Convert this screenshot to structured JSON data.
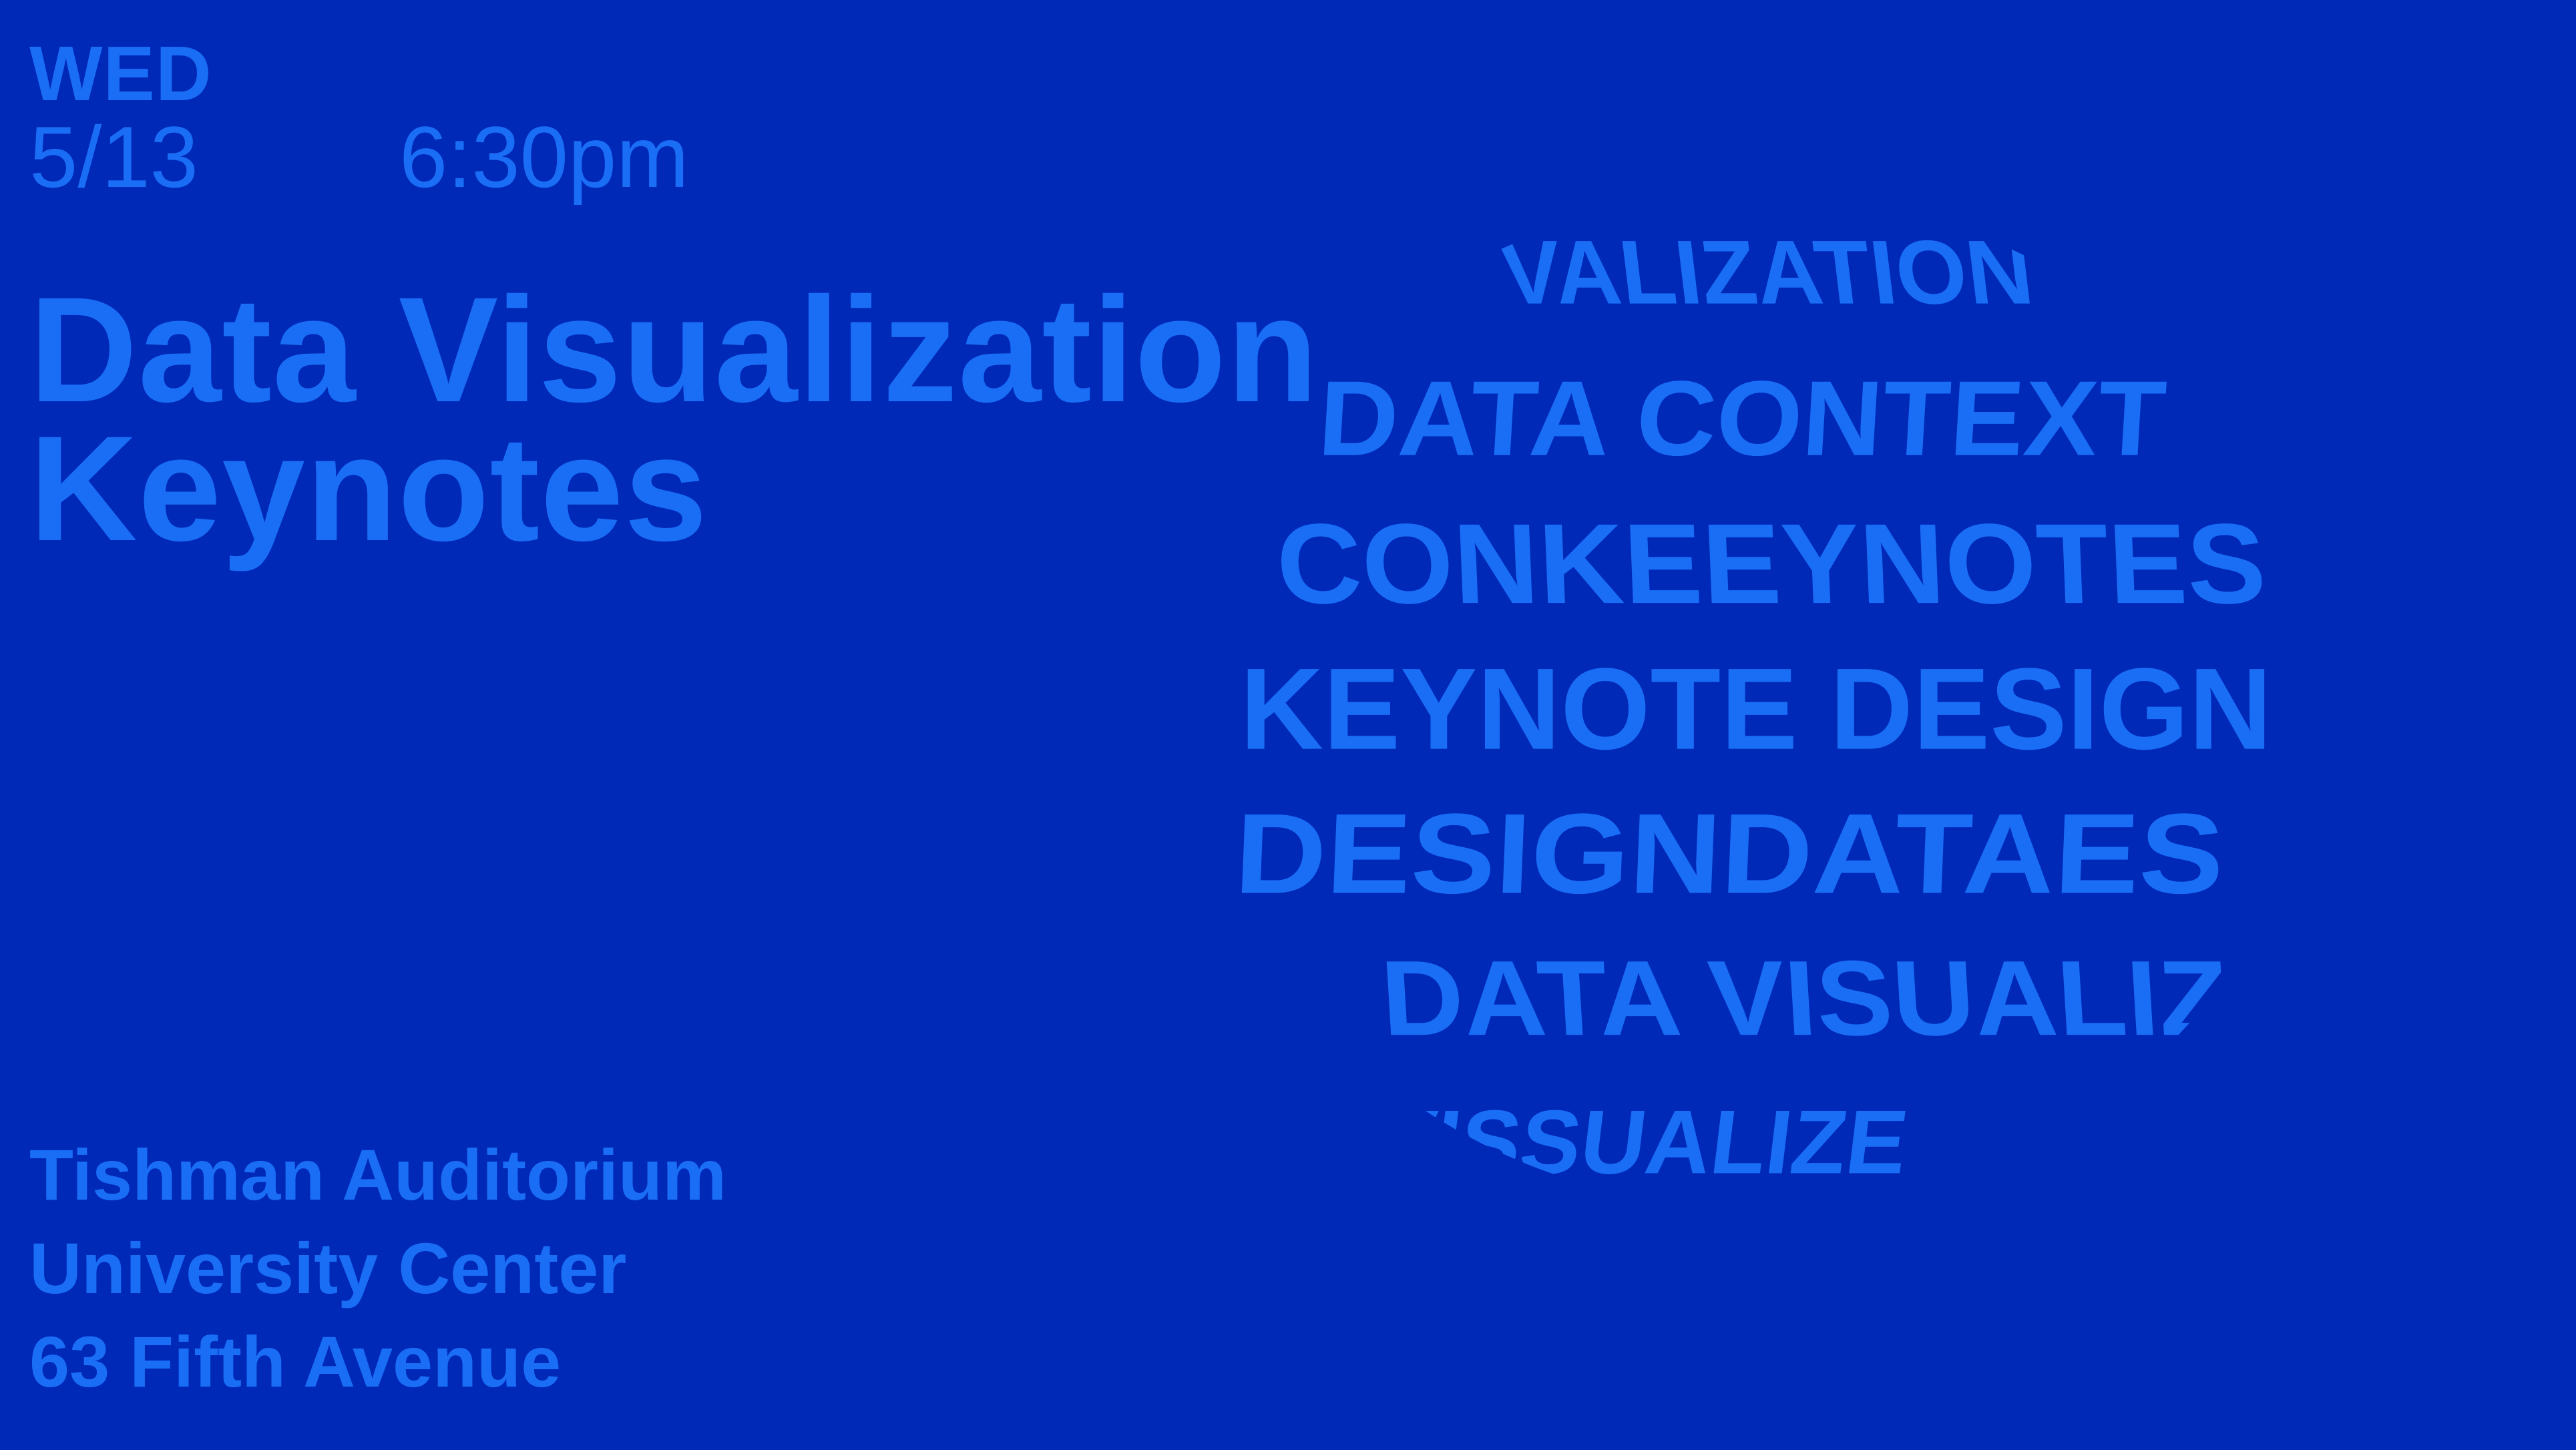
{
  "event": {
    "day": "WED",
    "date": "5/13",
    "time": "6:30pm",
    "title_line1": "Data Visualization",
    "title_line2": "Keynotes"
  },
  "venue": {
    "line1": "Tishman Auditorium",
    "line2": "University Center",
    "line3": "63 Fifth Avenue"
  },
  "globe": {
    "bands": [
      "VALIZATION",
      "DATA CONTEXT",
      "CONKEEYNOTES",
      "KEYNOTE DESIGN",
      "DESIGNDATAES",
      "DATA VISUALIZ",
      "VISSUALIZE"
    ]
  },
  "colors": {
    "background": "#0029b8",
    "text": "#1a6ef5"
  }
}
